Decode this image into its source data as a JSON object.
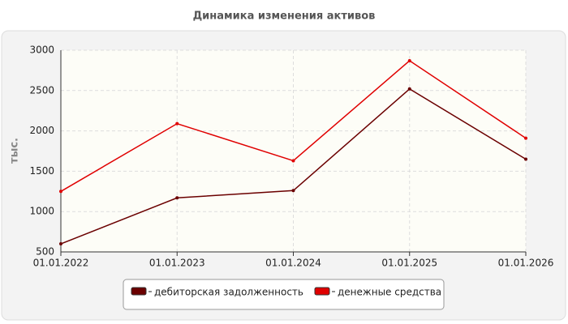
{
  "chart_data": {
    "type": "line",
    "title": "Динамика изменения активов",
    "y_label": "тыс.",
    "categories": [
      "01.01.2022",
      "01.01.2023",
      "01.01.2024",
      "01.01.2025",
      "01.01.2026"
    ],
    "series": [
      {
        "name": "дебиторская задолженность",
        "color": "#6b0000",
        "values": [
          600,
          1170,
          1260,
          2520,
          1650
        ]
      },
      {
        "name": "денежные средства",
        "color": "#e00000",
        "values": [
          1250,
          2090,
          1630,
          2870,
          1910
        ]
      }
    ],
    "ylim": [
      500,
      3000
    ],
    "yticks": [
      500,
      1000,
      1500,
      2000,
      2500,
      3000
    ],
    "grid": true
  }
}
